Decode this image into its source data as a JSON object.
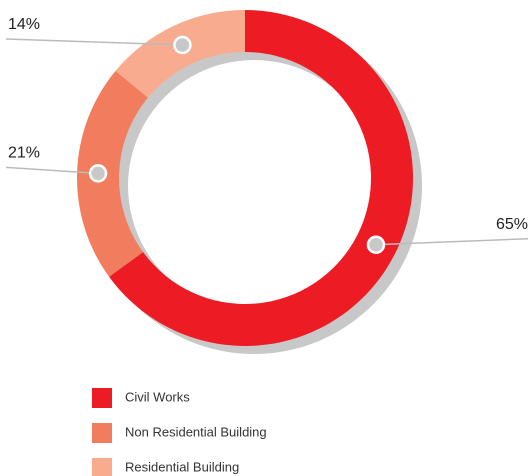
{
  "chart_data": {
    "type": "pie",
    "donut": true,
    "categories": [
      "Civil Works",
      "Non Residential Building",
      "Residential Building"
    ],
    "values": [
      65,
      21,
      14
    ],
    "value_labels": [
      "65%",
      "21%",
      "14%"
    ],
    "colors": [
      "#ed1c24",
      "#f27d5e",
      "#f9ab8f"
    ]
  }
}
